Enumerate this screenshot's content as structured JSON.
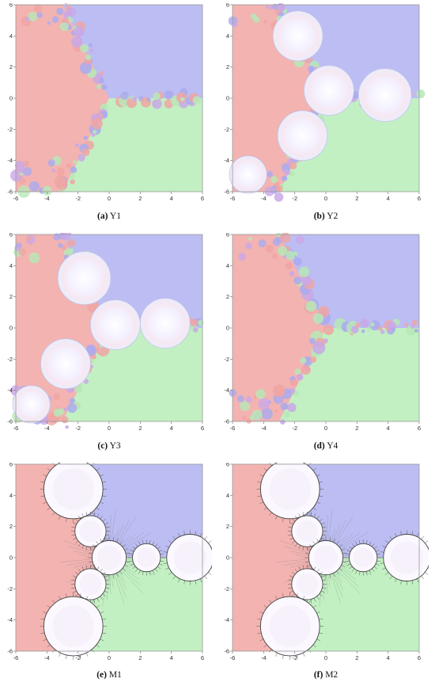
{
  "axis": {
    "x_ticks": [
      "-6",
      "-4",
      "-2",
      "0",
      "2",
      "4",
      "6"
    ],
    "y_ticks": [
      "6",
      "4",
      "2",
      "0",
      "-2",
      "-4",
      "-6"
    ],
    "range": [
      -6,
      6
    ]
  },
  "basin_colors": {
    "red": "#f2b3b1",
    "blue": "#bcbdf2",
    "green": "#c2f0c2",
    "boundary_blue": "#a9aaf0",
    "boundary_red": "#f0a5a3"
  },
  "panels": [
    {
      "id": "a",
      "letter": "(a)",
      "name": "Y1",
      "style": "fractal"
    },
    {
      "id": "b",
      "letter": "(b)",
      "name": "Y2",
      "style": "pale-discs"
    },
    {
      "id": "c",
      "letter": "(c)",
      "name": "Y3",
      "style": "pale-discs"
    },
    {
      "id": "d",
      "letter": "(d)",
      "name": "Y4",
      "style": "fractal"
    },
    {
      "id": "e",
      "letter": "(e)",
      "name": "M1",
      "style": "bulbs"
    },
    {
      "id": "f",
      "letter": "(f)",
      "name": "M2",
      "style": "bulbs"
    }
  ]
}
